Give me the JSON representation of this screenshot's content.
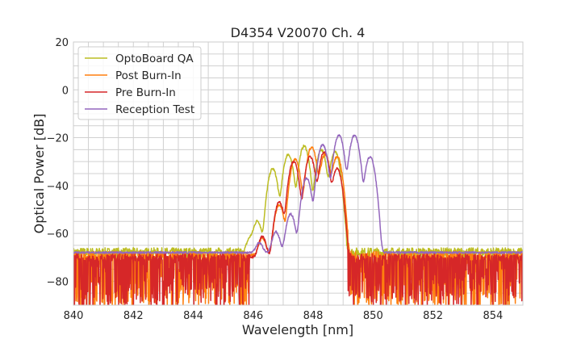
{
  "chart_data": {
    "type": "line",
    "title": "D4354 V20070 Ch. 4",
    "xlabel": "Wavelength [nm]",
    "ylabel": "Optical Power [dB]",
    "xlim": [
      840,
      855
    ],
    "ylim": [
      -90,
      20
    ],
    "xticks": [
      840,
      842,
      844,
      846,
      848,
      850,
      852,
      854
    ],
    "yticks": [
      20,
      0,
      -20,
      -40,
      -60,
      -80
    ],
    "ytick_labels": [
      "20",
      "0",
      "−20",
      "−40",
      "−60",
      "−80"
    ],
    "grid": true,
    "legend_position": "top-left",
    "series": [
      {
        "name": "OptoBoard QA",
        "color": "#bcbd22",
        "floor": -68,
        "band": [
          845.6,
          849.05
        ],
        "noise": "floor-jitter",
        "peaks": [
          [
            845.9,
            -63
          ],
          [
            846.14,
            -55
          ],
          [
            846.65,
            -33
          ],
          [
            847.17,
            -27
          ],
          [
            847.7,
            -23.5
          ],
          [
            848.27,
            -25
          ],
          [
            848.73,
            -26
          ]
        ]
      },
      {
        "name": "Post Burn-In",
        "color": "#ff7f0e",
        "floor": -69,
        "band": [
          845.9,
          849.15
        ],
        "noise": "dropouts",
        "peaks": [
          [
            846.3,
            -63
          ],
          [
            846.87,
            -48
          ],
          [
            847.4,
            -29
          ],
          [
            847.95,
            -24
          ],
          [
            848.4,
            -27
          ],
          [
            848.8,
            -28
          ]
        ]
      },
      {
        "name": "Pre Burn-In",
        "color": "#d62728",
        "floor": -70,
        "band": [
          845.9,
          849.15
        ],
        "noise": "dropouts",
        "peaks": [
          [
            846.3,
            -62
          ],
          [
            846.87,
            -47
          ],
          [
            847.35,
            -30
          ],
          [
            847.9,
            -28
          ],
          [
            848.37,
            -26
          ],
          [
            848.8,
            -33
          ]
        ]
      },
      {
        "name": "Reception Test",
        "color": "#9467bd",
        "floor": -68,
        "band": [
          845.5,
          850.25
        ],
        "noise": "smooth",
        "peaks": [
          [
            846.2,
            -66
          ],
          [
            846.76,
            -60
          ],
          [
            847.25,
            -52
          ],
          [
            847.78,
            -37
          ],
          [
            848.32,
            -23
          ],
          [
            848.86,
            -19
          ],
          [
            849.38,
            -19
          ],
          [
            849.9,
            -28
          ]
        ]
      }
    ]
  }
}
